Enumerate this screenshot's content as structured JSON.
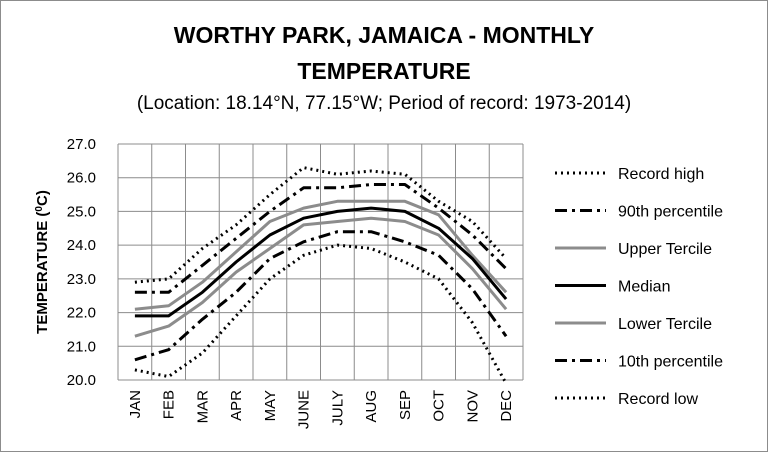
{
  "chart_data": {
    "type": "line",
    "title": "WORTHY PARK, JAMAICA - MONTHLY",
    "title_line2": "TEMPERATURE",
    "subtitle": "(Location: 18.14°N, 77.15°W; Period of record: 1973-2014)",
    "ylabel": "TEMPERATURE (",
    "ylabel_sup": "0",
    "ylabel_end": "C)",
    "xlabel": "",
    "ylim": [
      20.0,
      27.0
    ],
    "yticks": [
      "20.0",
      "21.0",
      "22.0",
      "23.0",
      "24.0",
      "25.0",
      "26.0",
      "27.0"
    ],
    "grid": "horizontal and vertical",
    "legend_position": "right",
    "categories": [
      "JAN",
      "FEB",
      "MAR",
      "APR",
      "MAY",
      "JUNE",
      "JULY",
      "AUG",
      "SEP",
      "OCT",
      "NOV",
      "DEC"
    ],
    "series": [
      {
        "name": "Record high",
        "style": "dotted",
        "color": "#000000",
        "values": [
          22.9,
          23.0,
          23.9,
          24.6,
          25.5,
          26.3,
          26.1,
          26.2,
          26.1,
          25.3,
          24.7,
          23.6
        ]
      },
      {
        "name": "90th percentile",
        "style": "dashdot",
        "color": "#000000",
        "values": [
          22.6,
          22.6,
          23.4,
          24.2,
          25.0,
          25.7,
          25.7,
          25.8,
          25.8,
          25.1,
          24.3,
          23.3
        ]
      },
      {
        "name": "Upper Tercile",
        "style": "solid",
        "color": "#8c8c8c",
        "values": [
          22.1,
          22.2,
          22.9,
          23.8,
          24.7,
          25.1,
          25.3,
          25.3,
          25.3,
          24.9,
          23.7,
          22.6
        ]
      },
      {
        "name": "Median",
        "style": "solid",
        "color": "#000000",
        "values": [
          21.9,
          21.9,
          22.6,
          23.5,
          24.3,
          24.8,
          25.0,
          25.1,
          25.0,
          24.5,
          23.6,
          22.4
        ]
      },
      {
        "name": "Lower Tercile",
        "style": "solid",
        "color": "#8c8c8c",
        "values": [
          21.3,
          21.6,
          22.3,
          23.2,
          23.9,
          24.6,
          24.7,
          24.8,
          24.7,
          24.3,
          23.3,
          22.1
        ]
      },
      {
        "name": "10th percentile",
        "style": "dashdot",
        "color": "#000000",
        "values": [
          20.6,
          20.9,
          21.8,
          22.6,
          23.6,
          24.1,
          24.4,
          24.4,
          24.1,
          23.7,
          22.7,
          21.3
        ]
      },
      {
        "name": "Record low",
        "style": "dotted",
        "color": "#000000",
        "values": [
          20.3,
          20.1,
          20.8,
          21.9,
          23.0,
          23.7,
          24.0,
          23.9,
          23.5,
          23.0,
          21.7,
          19.9
        ]
      }
    ]
  }
}
